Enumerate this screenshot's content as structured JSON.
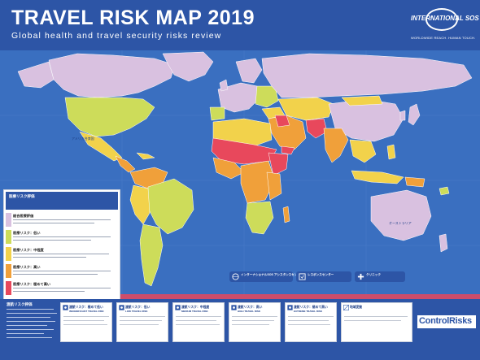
{
  "header": {
    "title": "TRAVEL RISK MAP 2019",
    "subtitle": "Global health and travel security risks review",
    "logo_name": "INTERNATIONAL SOS",
    "logo_tagline": "WORLDWIDE REACH. HUMAN TOUCH."
  },
  "colors": {
    "header_blue": "#2d55a6",
    "ocean": "#3a6fc0",
    "insignificant": "#d9c1e0",
    "low": "#cddc5a",
    "medium": "#f2d24b",
    "high": "#f0a03a",
    "extreme": "#e8485c"
  },
  "legend": {
    "heading": "医療リスク評価",
    "rows": [
      {
        "key": "insignificant",
        "label": "総合医療評価"
      },
      {
        "key": "low",
        "label": "医療リスク：低い"
      },
      {
        "key": "medium",
        "label": "医療リスク：中程度"
      },
      {
        "key": "high",
        "label": "医療リスク：高い"
      },
      {
        "key": "extreme",
        "label": "医療リスク：極めて高い"
      }
    ]
  },
  "bottom": {
    "left_label": "渡航リスク評価"
  },
  "security_cards": [
    {
      "key": "insignificant",
      "title": "渡航リスク：極めて低い",
      "sub": "INSIGNIFICANT TRAVEL RISK"
    },
    {
      "key": "low",
      "title": "渡航リスク：低い",
      "sub": "LOW TRAVEL RISK"
    },
    {
      "key": "medium",
      "title": "渡航リスク：中程度",
      "sub": "MEDIUM TRAVEL RISK"
    },
    {
      "key": "high",
      "title": "渡航リスク：高い",
      "sub": "HIGH TRAVEL RISK"
    },
    {
      "key": "extreme",
      "title": "渡航リスク：極めて高い",
      "sub": "EXTREME TRAVEL RISK"
    },
    {
      "key": "variable",
      "title": "地域変動",
      "sub": ""
    }
  ],
  "pills": [
    {
      "label": "インターナショナルSOS アシスタンスセンター"
    },
    {
      "label": "レスポンスセンター"
    },
    {
      "label": "クリニック"
    }
  ],
  "control_risks": "ControlRisks",
  "map_labels": {
    "australia": "オーストラリア",
    "usa": "アメリカ合衆国"
  }
}
